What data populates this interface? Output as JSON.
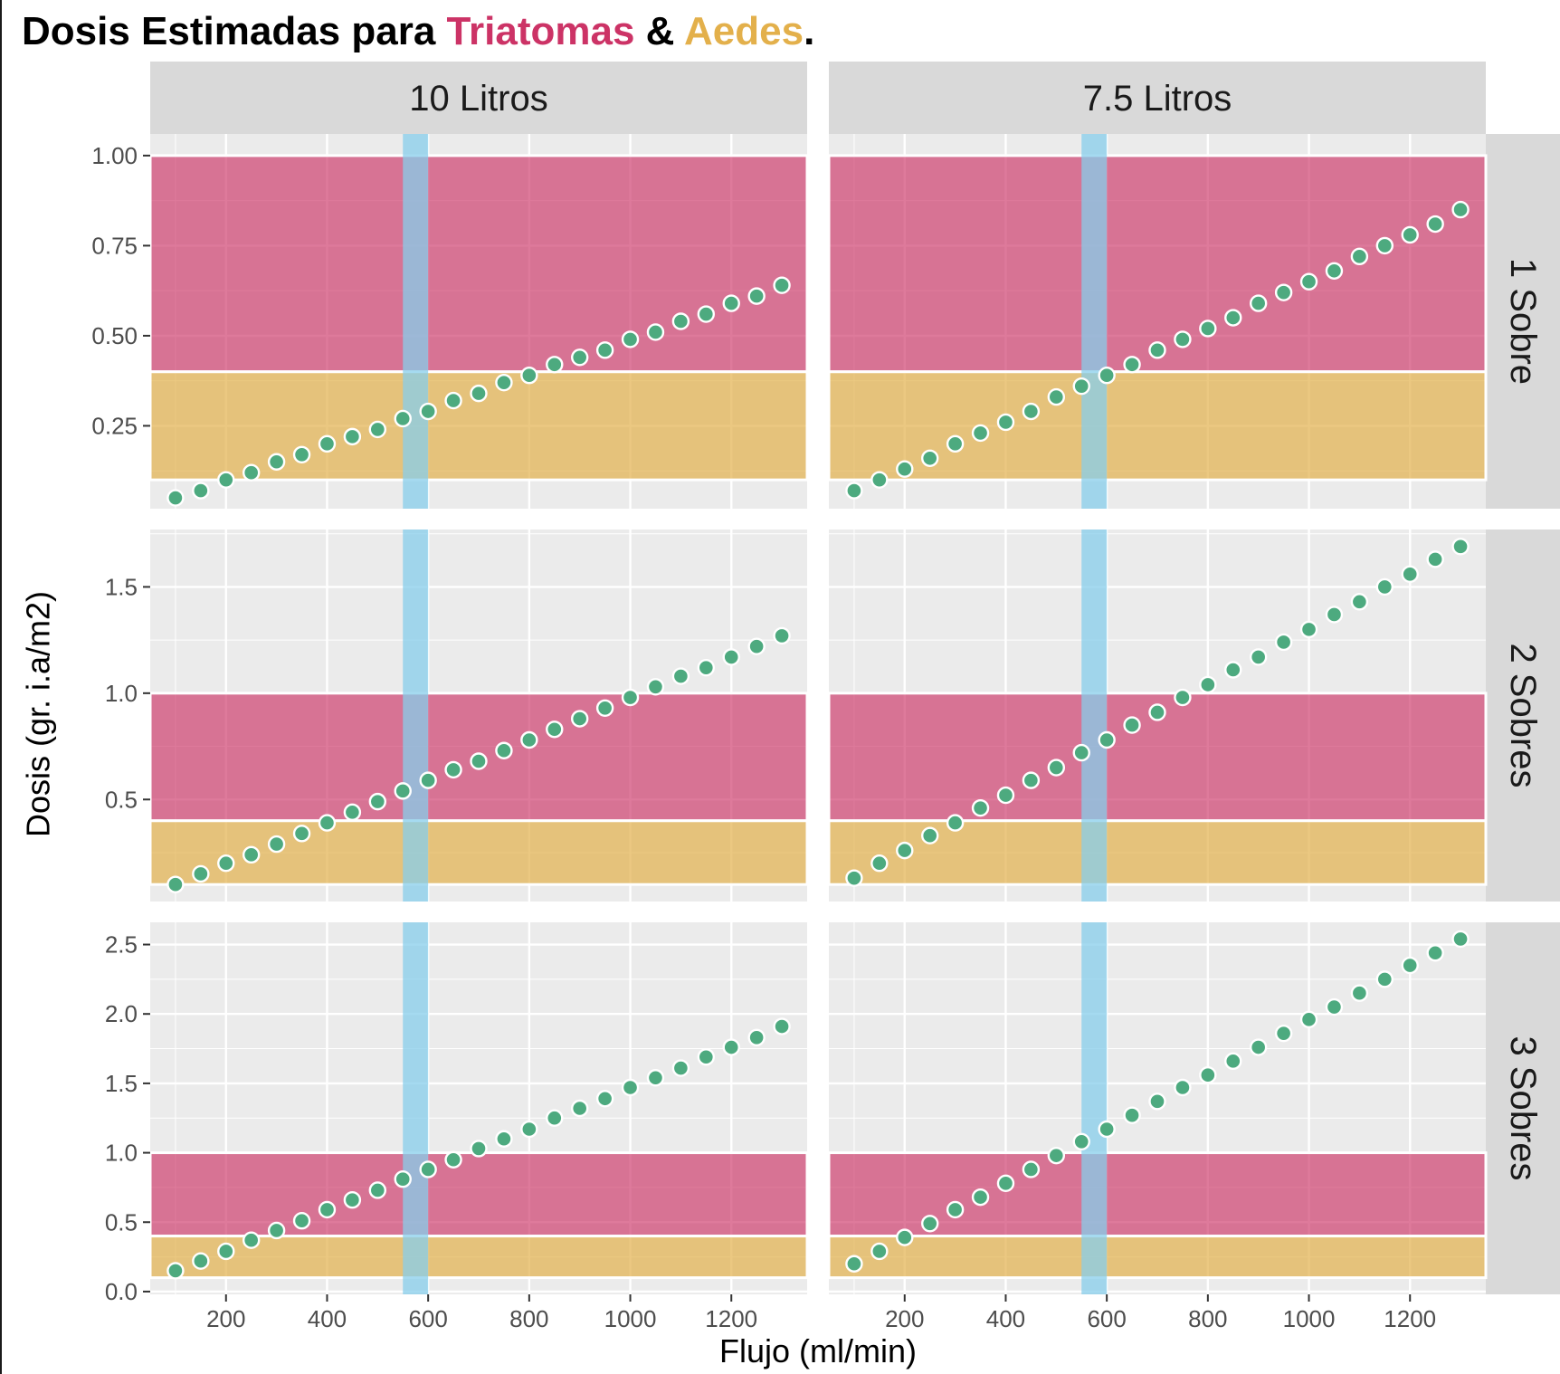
{
  "title": {
    "prefix": "Dosis Estimadas para ",
    "triatomas": "Triatomas",
    "amp": " & ",
    "aedes": "Aedes",
    "suffix": "."
  },
  "colors": {
    "triatomas": "#cc3366",
    "aedes": "#e3b04b",
    "flow_band": "#87ceeb",
    "points": "#4daa7f",
    "panel_bg": "#ebebeb",
    "strip_bg": "#d9d9d9"
  },
  "chart_data": {
    "type": "scatter",
    "xlabel": "Flujo (ml/min)",
    "ylabel": "Dosis (gr. i.a/m2)",
    "x_ticks": [
      200,
      400,
      600,
      800,
      1000,
      1200
    ],
    "xlim": [
      50,
      1350
    ],
    "column_facets": [
      "10 Litros",
      "7.5 Litros"
    ],
    "row_facets": [
      "1 Sobre",
      "2 Sobres",
      "3 Sobres"
    ],
    "x": [
      100,
      150,
      200,
      250,
      300,
      350,
      400,
      450,
      500,
      550,
      600,
      650,
      700,
      750,
      800,
      850,
      900,
      950,
      1000,
      1050,
      1100,
      1150,
      1200,
      1250,
      1300
    ],
    "bands": {
      "triatomas_range": [
        0.4,
        1.0
      ],
      "aedes_range": [
        0.1,
        0.4
      ],
      "flow_range": [
        550,
        600
      ]
    },
    "rows": [
      {
        "label": "1 Sobre",
        "ylim": [
          0.02,
          1.06
        ],
        "y_ticks": [
          0.25,
          0.5,
          0.75,
          1.0
        ],
        "y_tick_labels": [
          "0.25",
          "0.50",
          "0.75",
          "1.00"
        ],
        "series": [
          {
            "column": "10 Litros",
            "values": [
              0.05,
              0.07,
              0.1,
              0.12,
              0.15,
              0.17,
              0.2,
              0.22,
              0.24,
              0.27,
              0.29,
              0.32,
              0.34,
              0.37,
              0.39,
              0.42,
              0.44,
              0.46,
              0.49,
              0.51,
              0.54,
              0.56,
              0.59,
              0.61,
              0.64
            ]
          },
          {
            "column": "7.5 Litros",
            "values": [
              0.07,
              0.1,
              0.13,
              0.16,
              0.2,
              0.23,
              0.26,
              0.29,
              0.33,
              0.36,
              0.39,
              0.42,
              0.46,
              0.49,
              0.52,
              0.55,
              0.59,
              0.62,
              0.65,
              0.68,
              0.72,
              0.75,
              0.78,
              0.81,
              0.85
            ]
          }
        ]
      },
      {
        "label": "2 Sobres",
        "ylim": [
          0.02,
          1.77
        ],
        "y_ticks": [
          0.5,
          1.0,
          1.5
        ],
        "y_tick_labels": [
          "0.5",
          "1.0",
          "1.5"
        ],
        "series": [
          {
            "column": "10 Litros",
            "values": [
              0.1,
              0.15,
              0.2,
              0.24,
              0.29,
              0.34,
              0.39,
              0.44,
              0.49,
              0.54,
              0.59,
              0.64,
              0.68,
              0.73,
              0.78,
              0.83,
              0.88,
              0.93,
              0.98,
              1.03,
              1.08,
              1.12,
              1.17,
              1.22,
              1.27
            ]
          },
          {
            "column": "7.5 Litros",
            "values": [
              0.13,
              0.2,
              0.26,
              0.33,
              0.39,
              0.46,
              0.52,
              0.59,
              0.65,
              0.72,
              0.78,
              0.85,
              0.91,
              0.98,
              1.04,
              1.11,
              1.17,
              1.24,
              1.3,
              1.37,
              1.43,
              1.5,
              1.56,
              1.63,
              1.69
            ]
          }
        ]
      },
      {
        "label": "3 Sobres",
        "ylim": [
          -0.02,
          2.66
        ],
        "y_ticks": [
          0.0,
          0.5,
          1.0,
          1.5,
          2.0,
          2.5
        ],
        "y_tick_labels": [
          "0.0",
          "0.5",
          "1.0",
          "1.5",
          "2.0",
          "2.5"
        ],
        "series": [
          {
            "column": "10 Litros",
            "values": [
              0.15,
              0.22,
              0.29,
              0.37,
              0.44,
              0.51,
              0.59,
              0.66,
              0.73,
              0.81,
              0.88,
              0.95,
              1.03,
              1.1,
              1.17,
              1.25,
              1.32,
              1.39,
              1.47,
              1.54,
              1.61,
              1.69,
              1.76,
              1.83,
              1.91
            ]
          },
          {
            "column": "7.5 Litros",
            "values": [
              0.2,
              0.29,
              0.39,
              0.49,
              0.59,
              0.68,
              0.78,
              0.88,
              0.98,
              1.08,
              1.17,
              1.27,
              1.37,
              1.47,
              1.56,
              1.66,
              1.76,
              1.86,
              1.96,
              2.05,
              2.15,
              2.25,
              2.35,
              2.44,
              2.54
            ]
          }
        ]
      }
    ]
  }
}
